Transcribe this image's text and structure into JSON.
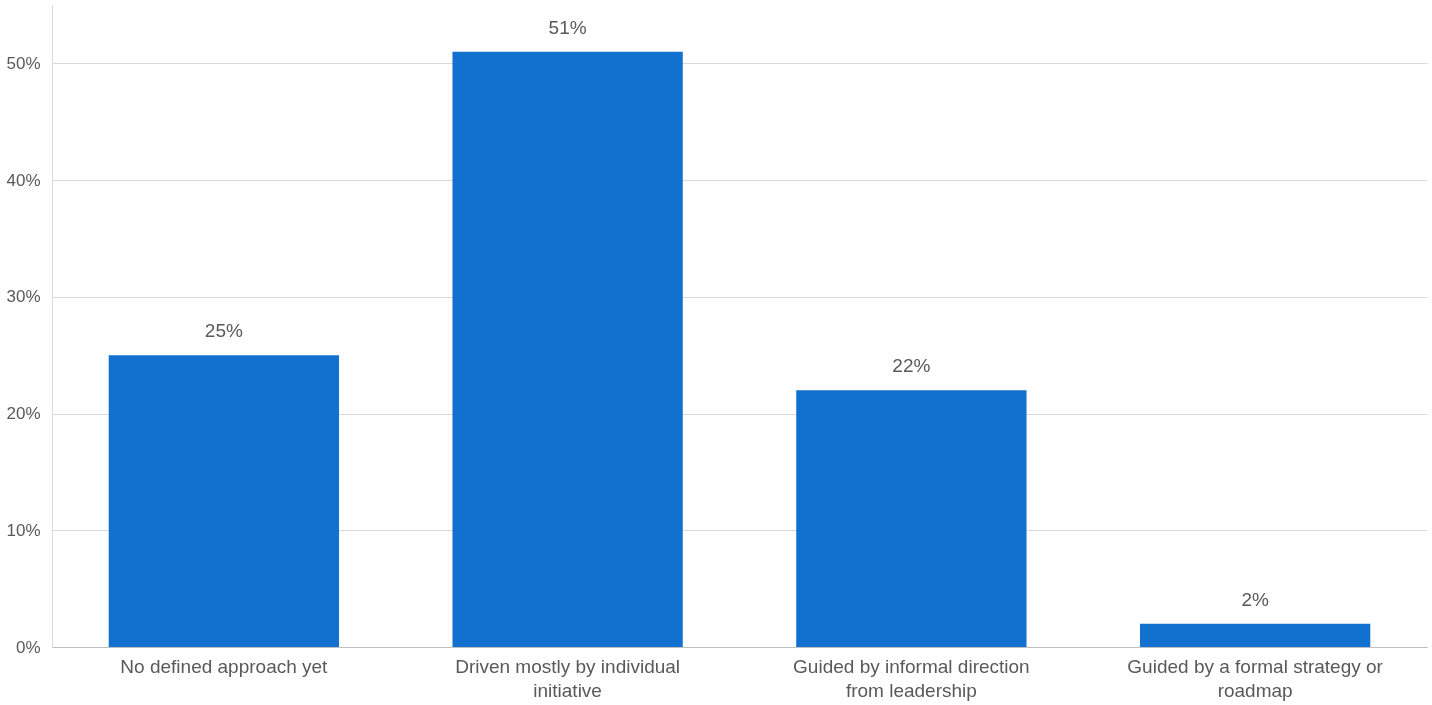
{
  "chart_data": {
    "type": "bar",
    "categories": [
      "No defined approach yet",
      "Driven mostly by individual initiative",
      "Guided by informal direction from leadership",
      "Guided by a formal strategy or roadmap"
    ],
    "values": [
      25,
      51,
      22,
      2
    ],
    "value_labels": [
      "25%",
      "51%",
      "22%",
      "2%"
    ],
    "color": "#1270cf",
    "ylim": [
      0,
      55
    ],
    "yticks": [
      {
        "value": 0,
        "label": "0%"
      },
      {
        "value": 10,
        "label": "10%"
      },
      {
        "value": 20,
        "label": "20%"
      },
      {
        "value": 30,
        "label": "30%"
      },
      {
        "value": 40,
        "label": "40%"
      },
      {
        "value": 50,
        "label": "50%"
      }
    ],
    "grid": "y"
  }
}
